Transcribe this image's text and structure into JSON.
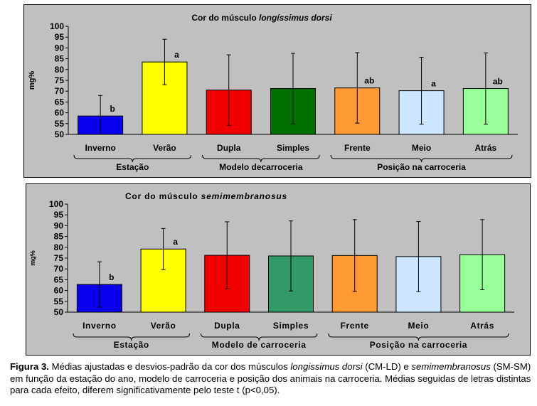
{
  "chart_data": [
    {
      "type": "bar",
      "title": "Cor do músculo longíssimus dorsi",
      "title_plain": "Cor do músculo ",
      "title_italic": "longíssimus dorsi",
      "ylabel": "mg%",
      "ylim": [
        50,
        100
      ],
      "yticks": [
        50,
        55,
        60,
        65,
        70,
        75,
        80,
        85,
        90,
        95,
        100
      ],
      "categories": [
        "Inverno",
        "Verão",
        "Dupla",
        "Simples",
        "Frente",
        "Meio",
        "Atrás"
      ],
      "values": [
        58.5,
        83.5,
        70.5,
        71.2,
        71.5,
        70.2,
        71.2
      ],
      "error": [
        9.5,
        10.5,
        16.3,
        16.3,
        16.3,
        15.5,
        16.5
      ],
      "letters": [
        "b",
        "a",
        "",
        "",
        "ab",
        "a",
        "ab"
      ],
      "colors": [
        "#0a00f0",
        "#ffff00",
        "#f00000",
        "#007000",
        "#ff9933",
        "#cce6ff",
        "#99ff99"
      ],
      "groups": [
        {
          "label": "Estação",
          "from": 0,
          "to": 1
        },
        {
          "label": "Modelo decarroceria",
          "from": 2,
          "to": 3
        },
        {
          "label": "Posição na carroceria",
          "from": 4,
          "to": 6
        }
      ]
    },
    {
      "type": "bar",
      "title": "Cor do músculo semimembranosus",
      "title_plain": "Cor do músculo ",
      "title_italic": "semimembranosus",
      "ylabel": "mg%",
      "ylim": [
        50,
        100
      ],
      "yticks": [
        50,
        55,
        60,
        65,
        70,
        75,
        80,
        85,
        90,
        95,
        100
      ],
      "categories": [
        "Inverno",
        "Verão",
        "Dupla",
        "Simples",
        "Frente",
        "Meio",
        "Atrás"
      ],
      "values": [
        62.8,
        79.2,
        76.3,
        76.0,
        76.2,
        75.7,
        76.6
      ],
      "error": [
        10.5,
        9.5,
        15.5,
        16.2,
        16.6,
        16.2,
        16.2
      ],
      "letters": [
        "b",
        "a",
        "",
        "",
        "",
        "",
        ""
      ],
      "colors": [
        "#0a00f0",
        "#ffff00",
        "#f00000",
        "#339966",
        "#ff9933",
        "#cce6ff",
        "#99ff99"
      ],
      "groups": [
        {
          "label": "Estação",
          "from": 0,
          "to": 1
        },
        {
          "label": "Modelo de carroceria",
          "from": 2,
          "to": 3
        },
        {
          "label": "Posição na carroceria",
          "from": 4,
          "to": 6
        }
      ]
    }
  ],
  "caption": {
    "label": "Figura 3.",
    "t1": " Médias ajustadas e desvios-padrão da cor dos músculos ",
    "i1": "longissimus dorsi",
    "t2": " (CM-LD) e ",
    "i2": "semimembranosus",
    "t3": " (SM-SM) em função da estação do ano, modelo de carroceria e posição dos animais na carroceria. Médias seguidas de letras distintas para cada efeito, diferem significativamente pelo teste t (p<0,05)."
  }
}
